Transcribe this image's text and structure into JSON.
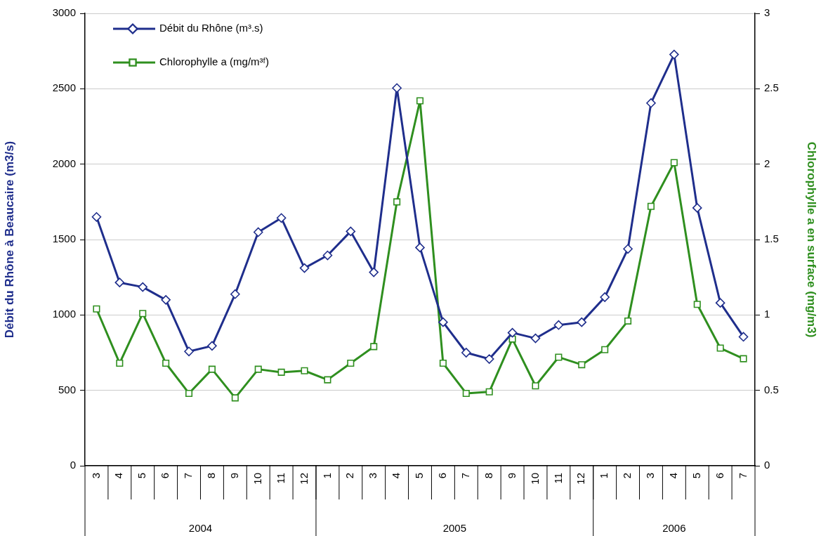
{
  "chart_data": {
    "type": "line",
    "categories": [
      "3",
      "4",
      "5",
      "6",
      "7",
      "8",
      "9",
      "10",
      "11",
      "12",
      "1",
      "2",
      "3",
      "4",
      "5",
      "6",
      "7",
      "8",
      "9",
      "10",
      "11",
      "12",
      "1",
      "2",
      "3",
      "4",
      "5",
      "6",
      "7"
    ],
    "series": [
      {
        "name": "Débit du Rhône (m³.s)",
        "color": "#1f2e8c",
        "marker": "diamond",
        "values": [
          1650,
          1215,
          1185,
          1100,
          758,
          795,
          1138,
          1549,
          1643,
          1311,
          1395,
          1554,
          1283,
          2505,
          1447,
          952,
          750,
          708,
          882,
          845,
          933,
          952,
          1118,
          1438,
          2405,
          2727,
          1710,
          1080,
          855
        ]
      },
      {
        "name": "Chlorophylle a (mg/m³ᶠ)",
        "color": "#2f8f1f",
        "marker": "square",
        "axis": "y2",
        "values": [
          1.04,
          0.68,
          1.01,
          0.68,
          0.48,
          0.64,
          0.45,
          0.64,
          0.62,
          0.63,
          0.57,
          0.68,
          0.79,
          1.75,
          2.42,
          0.68,
          0.48,
          0.49,
          0.84,
          0.53,
          0.72,
          0.67,
          0.77,
          0.96,
          1.72,
          2.01,
          1.07,
          0.78,
          0.71
        ]
      }
    ],
    "ylabel": "Débit du Rhône à Beaucaire (m3/s)",
    "y2label": "Chlorophylle a en surface (mg/m3)",
    "ylim": [
      0,
      3000
    ],
    "yticks": [
      0,
      500,
      1000,
      1500,
      2000,
      2500,
      3000
    ],
    "y2lim": [
      0,
      3
    ],
    "y2ticks": [
      0,
      0.5,
      1,
      1.5,
      2,
      2.5,
      3
    ],
    "annotations": [
      "2004",
      "2005",
      "2006"
    ],
    "grid": "y",
    "legend": "top left",
    "line_style": "solid"
  }
}
